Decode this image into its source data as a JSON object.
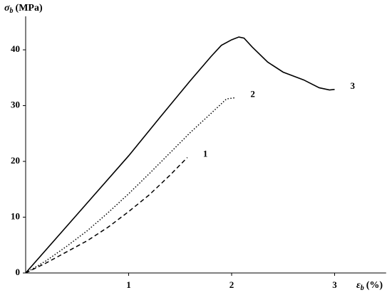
{
  "chart_data": {
    "type": "line",
    "y_label": {
      "symbol": "σ",
      "subscript": "b",
      "unit": "(MPa)"
    },
    "x_label": {
      "symbol": "ε",
      "subscript": "b",
      "unit": "(%)"
    },
    "xlim": [
      0,
      3.5
    ],
    "xticks": [
      1,
      2,
      3
    ],
    "ylim": [
      0,
      46
    ],
    "yticks": [
      0,
      10,
      20,
      30,
      40
    ],
    "series": [
      {
        "name": "1",
        "color": "#000000",
        "line_style": "dashed",
        "x": [
          0,
          0.2,
          0.4,
          0.6,
          0.8,
          1.0,
          1.2,
          1.4,
          1.57
        ],
        "values": [
          0,
          1.8,
          3.8,
          5.8,
          8.2,
          11,
          14,
          17.5,
          20.7
        ]
      },
      {
        "name": "2",
        "color": "#000000",
        "line_style": "dotted",
        "x": [
          0,
          0.2,
          0.4,
          0.6,
          0.8,
          1.0,
          1.2,
          1.4,
          1.6,
          1.8,
          1.95,
          2.03
        ],
        "values": [
          0,
          2.2,
          4.8,
          7.6,
          10.8,
          14.2,
          17.8,
          21.5,
          25.2,
          28.6,
          31.2,
          31.4
        ]
      },
      {
        "name": "3",
        "color": "#000000",
        "line_style": "solid",
        "x": [
          0,
          0.5,
          1.0,
          1.3,
          1.6,
          1.8,
          1.9,
          2.0,
          2.07,
          2.12,
          2.2,
          2.35,
          2.5,
          2.7,
          2.85,
          2.95,
          3.0
        ],
        "values": [
          0,
          10.5,
          21,
          27.8,
          34.5,
          38.8,
          40.8,
          41.8,
          42.3,
          42.1,
          40.5,
          37.8,
          36,
          34.6,
          33.2,
          32.8,
          32.9
        ]
      }
    ]
  }
}
